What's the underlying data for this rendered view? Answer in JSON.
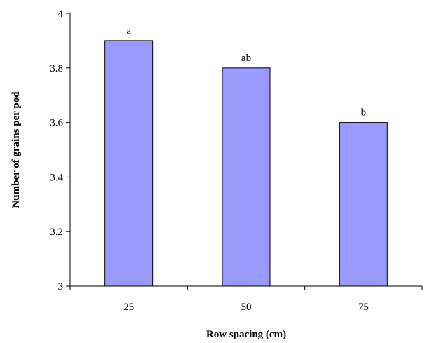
{
  "chart_data": {
    "type": "bar",
    "categories": [
      "25",
      "50",
      "75"
    ],
    "values": [
      3.9,
      3.8,
      3.6
    ],
    "bar_labels": [
      "a",
      "ab",
      "b"
    ],
    "title": "",
    "xlabel": "Row spacing (cm)",
    "ylabel": "Number of grains per pod",
    "ylim": [
      3,
      4
    ],
    "yticks": [
      3,
      3.2,
      3.4,
      3.6,
      3.8,
      4
    ],
    "ytick_labels": [
      "3",
      "3.2",
      "3.4",
      "3.6",
      "3.8",
      "4"
    ],
    "grid": false,
    "bar_color": "#9999ff"
  }
}
